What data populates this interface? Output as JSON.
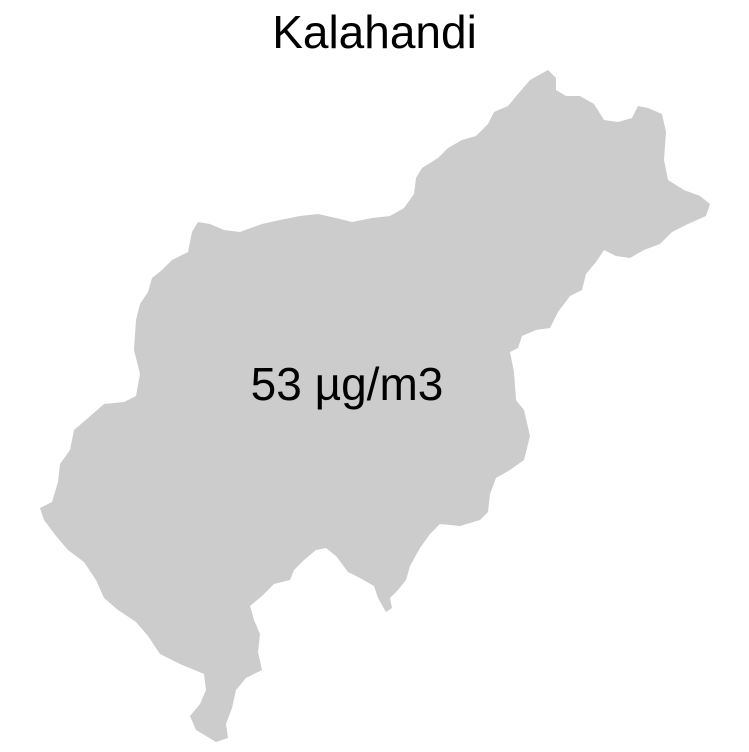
{
  "map": {
    "title": "Kalahandi",
    "region_fill": "#cccccc",
    "background": "#ffffff",
    "value_label": "53 µg/m3"
  }
}
